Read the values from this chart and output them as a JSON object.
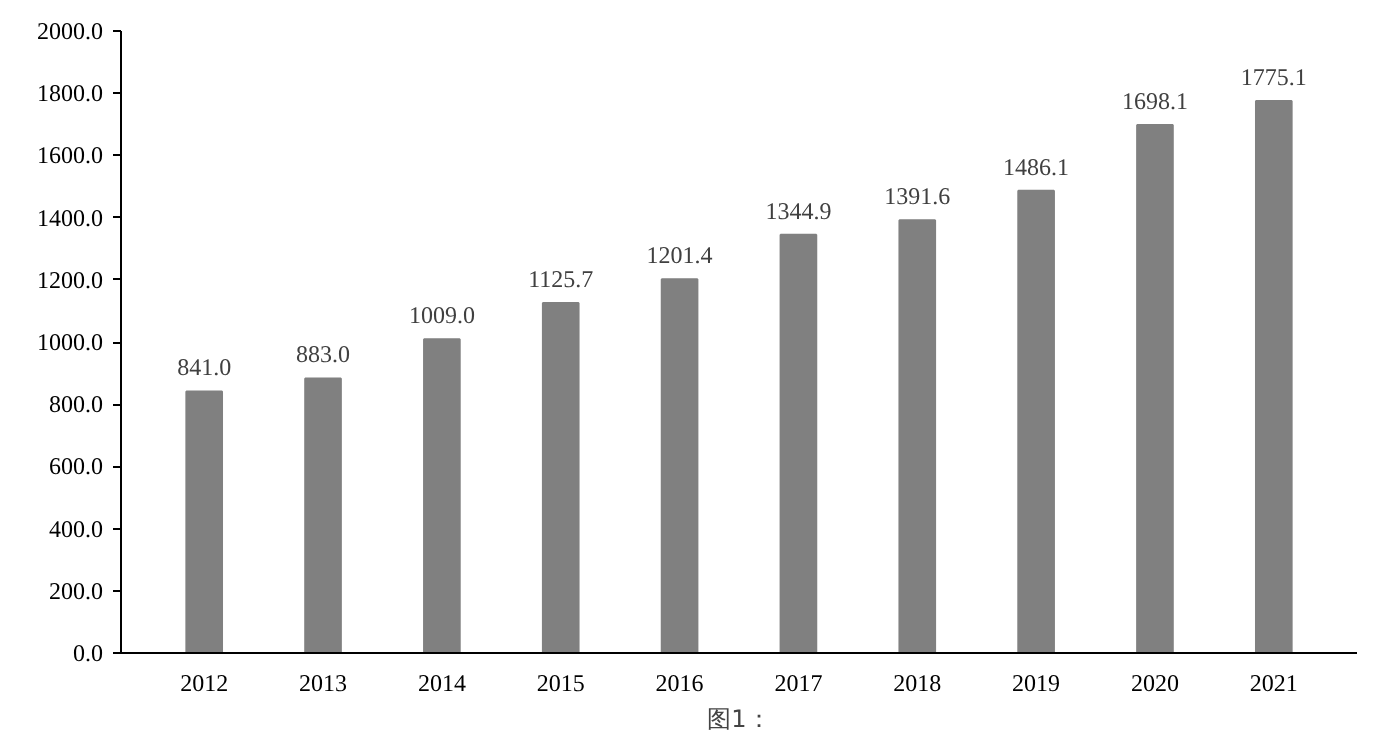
{
  "chart_data": {
    "type": "bar",
    "categories": [
      "2012",
      "2013",
      "2014",
      "2015",
      "2016",
      "2017",
      "2018",
      "2019",
      "2020",
      "2021"
    ],
    "values": [
      841.0,
      883.0,
      1009.0,
      1125.7,
      1201.4,
      1344.9,
      1391.6,
      1486.1,
      1698.1,
      1775.1
    ],
    "value_labels": [
      "841.0",
      "883.0",
      "1009.0",
      "1125.7",
      "1201.4",
      "1344.9",
      "1391.6",
      "1486.1",
      "1698.1",
      "1775.1"
    ],
    "color": "#808080",
    "ylim": [
      0,
      2000
    ],
    "yticks": [
      {
        "value": 0,
        "label": "0.0"
      },
      {
        "value": 200,
        "label": "200.0"
      },
      {
        "value": 400,
        "label": "400.0"
      },
      {
        "value": 600,
        "label": "600.0"
      },
      {
        "value": 800,
        "label": "800.0"
      },
      {
        "value": 1000,
        "label": "1000.0"
      },
      {
        "value": 1200,
        "label": "1200.0"
      },
      {
        "value": 1400,
        "label": "1400.0"
      },
      {
        "value": 1600,
        "label": "1600.0"
      },
      {
        "value": 1800,
        "label": "1800.0"
      },
      {
        "value": 2000,
        "label": "2000.0"
      }
    ],
    "grid": false,
    "annotations": [
      "图1："
    ]
  }
}
